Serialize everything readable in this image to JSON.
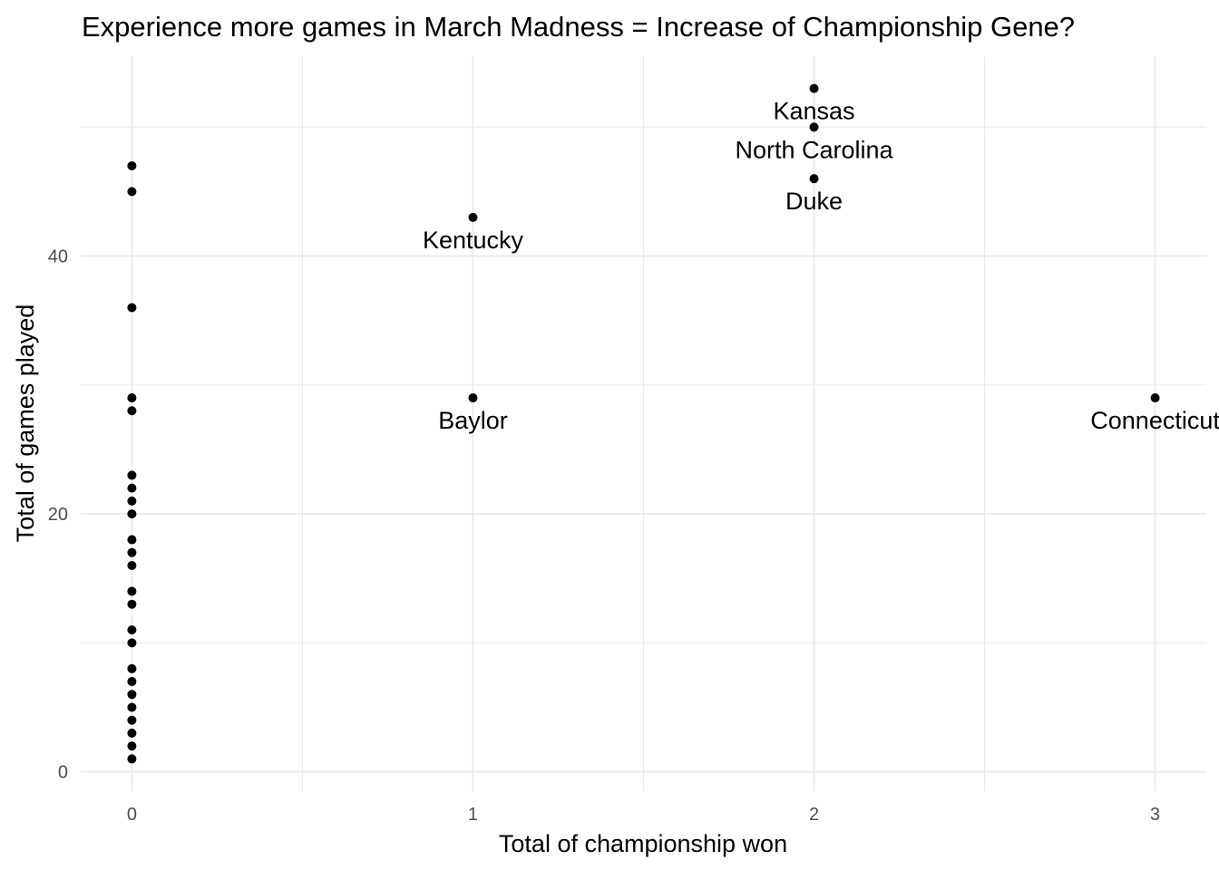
{
  "chart_data": {
    "type": "scatter",
    "title": "Experience more games in March Madness = Increase of Championship Gene?",
    "xlabel": "Total of championship won",
    "ylabel": "Total of games played",
    "xlim": [
      -0.15,
      3.15
    ],
    "ylim": [
      -1.5,
      55.5
    ],
    "x_ticks": [
      0,
      1,
      2,
      3
    ],
    "y_ticks": [
      0,
      20,
      40
    ],
    "grid": true,
    "point_color": "#000000",
    "points": [
      {
        "x": 0,
        "y": 47
      },
      {
        "x": 0,
        "y": 45
      },
      {
        "x": 0,
        "y": 36
      },
      {
        "x": 0,
        "y": 29
      },
      {
        "x": 0,
        "y": 28
      },
      {
        "x": 0,
        "y": 23
      },
      {
        "x": 0,
        "y": 22
      },
      {
        "x": 0,
        "y": 21
      },
      {
        "x": 0,
        "y": 20
      },
      {
        "x": 0,
        "y": 18
      },
      {
        "x": 0,
        "y": 17
      },
      {
        "x": 0,
        "y": 16
      },
      {
        "x": 0,
        "y": 14
      },
      {
        "x": 0,
        "y": 13
      },
      {
        "x": 0,
        "y": 11
      },
      {
        "x": 0,
        "y": 10
      },
      {
        "x": 0,
        "y": 8
      },
      {
        "x": 0,
        "y": 7
      },
      {
        "x": 0,
        "y": 6
      },
      {
        "x": 0,
        "y": 5
      },
      {
        "x": 0,
        "y": 4
      },
      {
        "x": 0,
        "y": 3
      },
      {
        "x": 0,
        "y": 2
      },
      {
        "x": 0,
        "y": 1
      },
      {
        "x": 1,
        "y": 43,
        "label": "Kentucky"
      },
      {
        "x": 1,
        "y": 29,
        "label": "Baylor"
      },
      {
        "x": 2,
        "y": 53,
        "label": "Kansas"
      },
      {
        "x": 2,
        "y": 50,
        "label": "North Carolina"
      },
      {
        "x": 2,
        "y": 46,
        "label": "Duke"
      },
      {
        "x": 3,
        "y": 29,
        "label": "Connecticut"
      }
    ]
  }
}
